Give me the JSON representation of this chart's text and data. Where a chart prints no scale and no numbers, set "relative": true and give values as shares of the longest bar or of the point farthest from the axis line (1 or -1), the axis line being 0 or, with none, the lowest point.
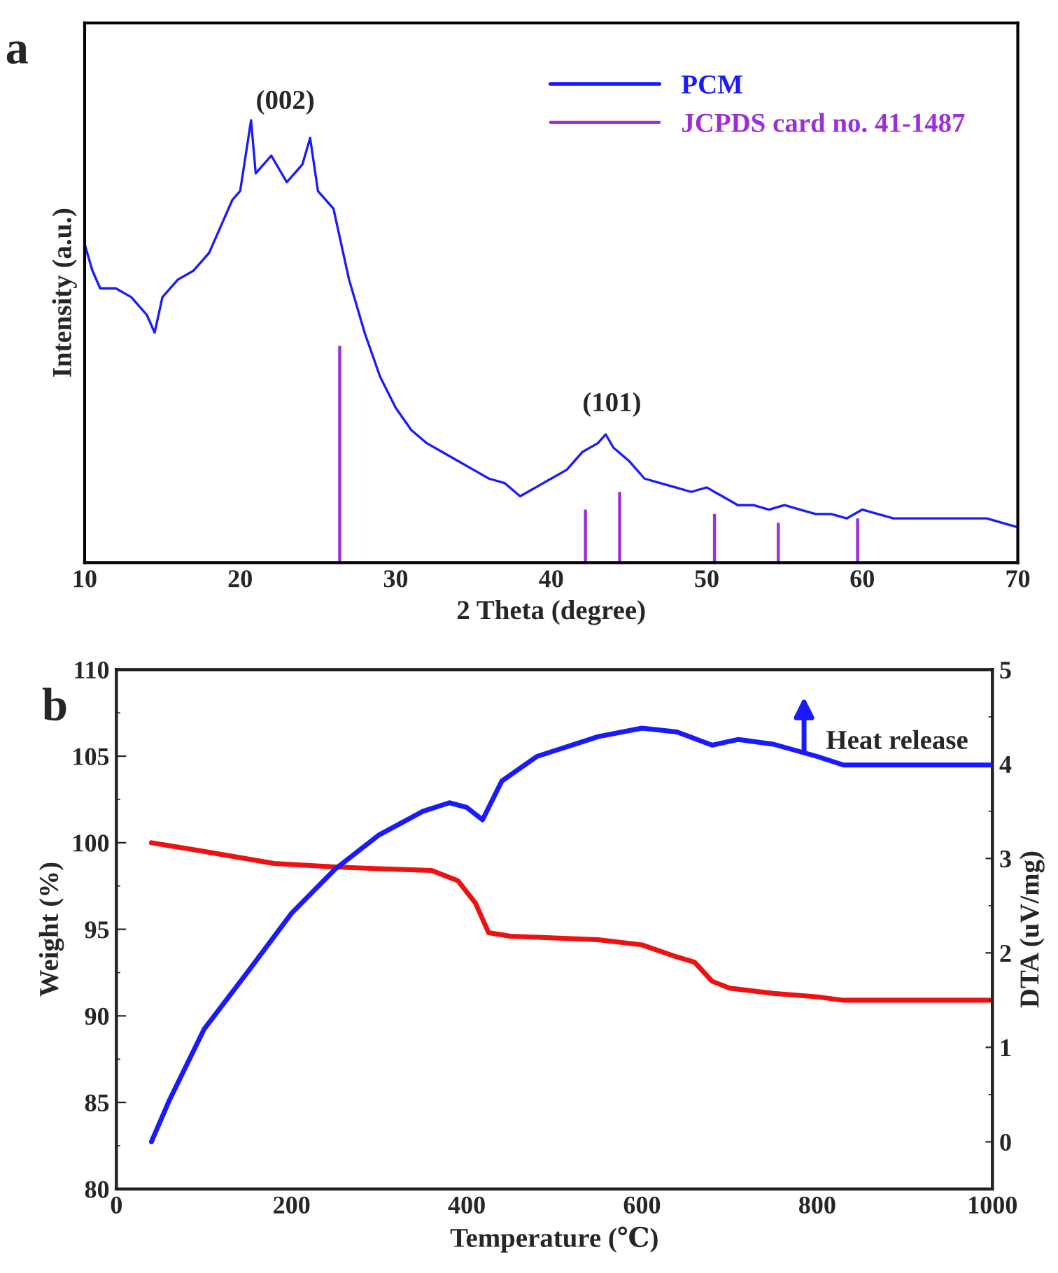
{
  "chart_data": [
    {
      "type": "line",
      "relative": true,
      "xlabel": "2 Theta (degree)",
      "ylabel": "Intensity (a.u.)",
      "xlim": [
        10,
        70
      ],
      "xticks": [
        10,
        20,
        30,
        40,
        50,
        60,
        70
      ],
      "tick_labels": "x",
      "legend": "top right",
      "grid": false,
      "marker": "none",
      "line_style": "solid",
      "annotations": [
        "a",
        "(002)",
        "(101)"
      ],
      "series": [
        {
          "name": "PCM",
          "color": "#1a1aff",
          "x": [
            10,
            10.5,
            11,
            12,
            13,
            14,
            14.5,
            15,
            16,
            17,
            18,
            19,
            19.5,
            20,
            20.7,
            21,
            22,
            23,
            24,
            24.5,
            25,
            26,
            26.5,
            27,
            28,
            29,
            30,
            31,
            32,
            33,
            34,
            35,
            36,
            37,
            38,
            39,
            40,
            41,
            42,
            43,
            43.5,
            44,
            45,
            46,
            47,
            48,
            49,
            50,
            51,
            52,
            53,
            54,
            55,
            56,
            57,
            58,
            59,
            60,
            62,
            64,
            66,
            68,
            70
          ],
          "values": [
            0.72,
            0.66,
            0.62,
            0.62,
            0.6,
            0.56,
            0.52,
            0.6,
            0.64,
            0.66,
            0.7,
            0.78,
            0.82,
            0.84,
            1.0,
            0.88,
            0.92,
            0.86,
            0.9,
            0.96,
            0.84,
            0.8,
            0.72,
            0.64,
            0.52,
            0.42,
            0.35,
            0.3,
            0.27,
            0.25,
            0.23,
            0.21,
            0.19,
            0.18,
            0.15,
            0.17,
            0.19,
            0.21,
            0.25,
            0.27,
            0.29,
            0.26,
            0.23,
            0.19,
            0.18,
            0.17,
            0.16,
            0.17,
            0.15,
            0.13,
            0.13,
            0.12,
            0.13,
            0.12,
            0.11,
            0.11,
            0.1,
            0.12,
            0.1,
            0.1,
            0.1,
            0.1,
            0.08
          ]
        },
        {
          "name": "JCPDS card no. 41-1487",
          "type": "bar",
          "color": "#9b30d9",
          "x": [
            26.4,
            42.2,
            44.4,
            50.5,
            54.6,
            59.7
          ],
          "values": [
            0.49,
            0.12,
            0.16,
            0.11,
            0.09,
            0.1
          ]
        }
      ]
    },
    {
      "type": "line",
      "xlabel": "Temperature (℃)",
      "ylabel": "Weight (%)",
      "y2label": "DTA (uV/mg)",
      "xlim": [
        0,
        1000
      ],
      "xticks": [
        0,
        200,
        400,
        600,
        800,
        1000
      ],
      "ylim": [
        80,
        110
      ],
      "yticks": [
        80,
        85,
        90,
        95,
        100,
        105,
        110
      ],
      "y2lim": [
        -0.5,
        5
      ],
      "y2ticks": [
        0,
        1,
        2,
        3,
        4,
        5
      ],
      "grid": false,
      "legend": false,
      "marker": "none",
      "line_style": "solid",
      "annotations": [
        "b",
        "Heat release"
      ],
      "series": [
        {
          "color": "#ee1111",
          "x": [
            40,
            100,
            180,
            250,
            300,
            360,
            390,
            410,
            425,
            450,
            500,
            550,
            600,
            640,
            660,
            680,
            700,
            750,
            800,
            830,
            900,
            1000
          ],
          "values": [
            100,
            99.5,
            98.8,
            98.6,
            98.5,
            98.4,
            97.8,
            96.5,
            94.8,
            94.6,
            94.5,
            94.4,
            94.1,
            93.4,
            93.1,
            92,
            91.6,
            91.3,
            91.1,
            90.9,
            90.9,
            90.9
          ]
        },
        {
          "color": "#1a1aff",
          "axis": "y2",
          "x": [
            40,
            60,
            100,
            150,
            200,
            250,
            300,
            350,
            380,
            400,
            418,
            440,
            480,
            550,
            600,
            640,
            680,
            710,
            750,
            800,
            830,
            1000
          ],
          "values": [
            0,
            0.43,
            1.19,
            1.8,
            2.42,
            2.89,
            3.25,
            3.5,
            3.59,
            3.54,
            3.41,
            3.82,
            4.08,
            4.29,
            4.38,
            4.34,
            4.2,
            4.26,
            4.21,
            4.08,
            3.99,
            3.99
          ]
        }
      ]
    }
  ]
}
